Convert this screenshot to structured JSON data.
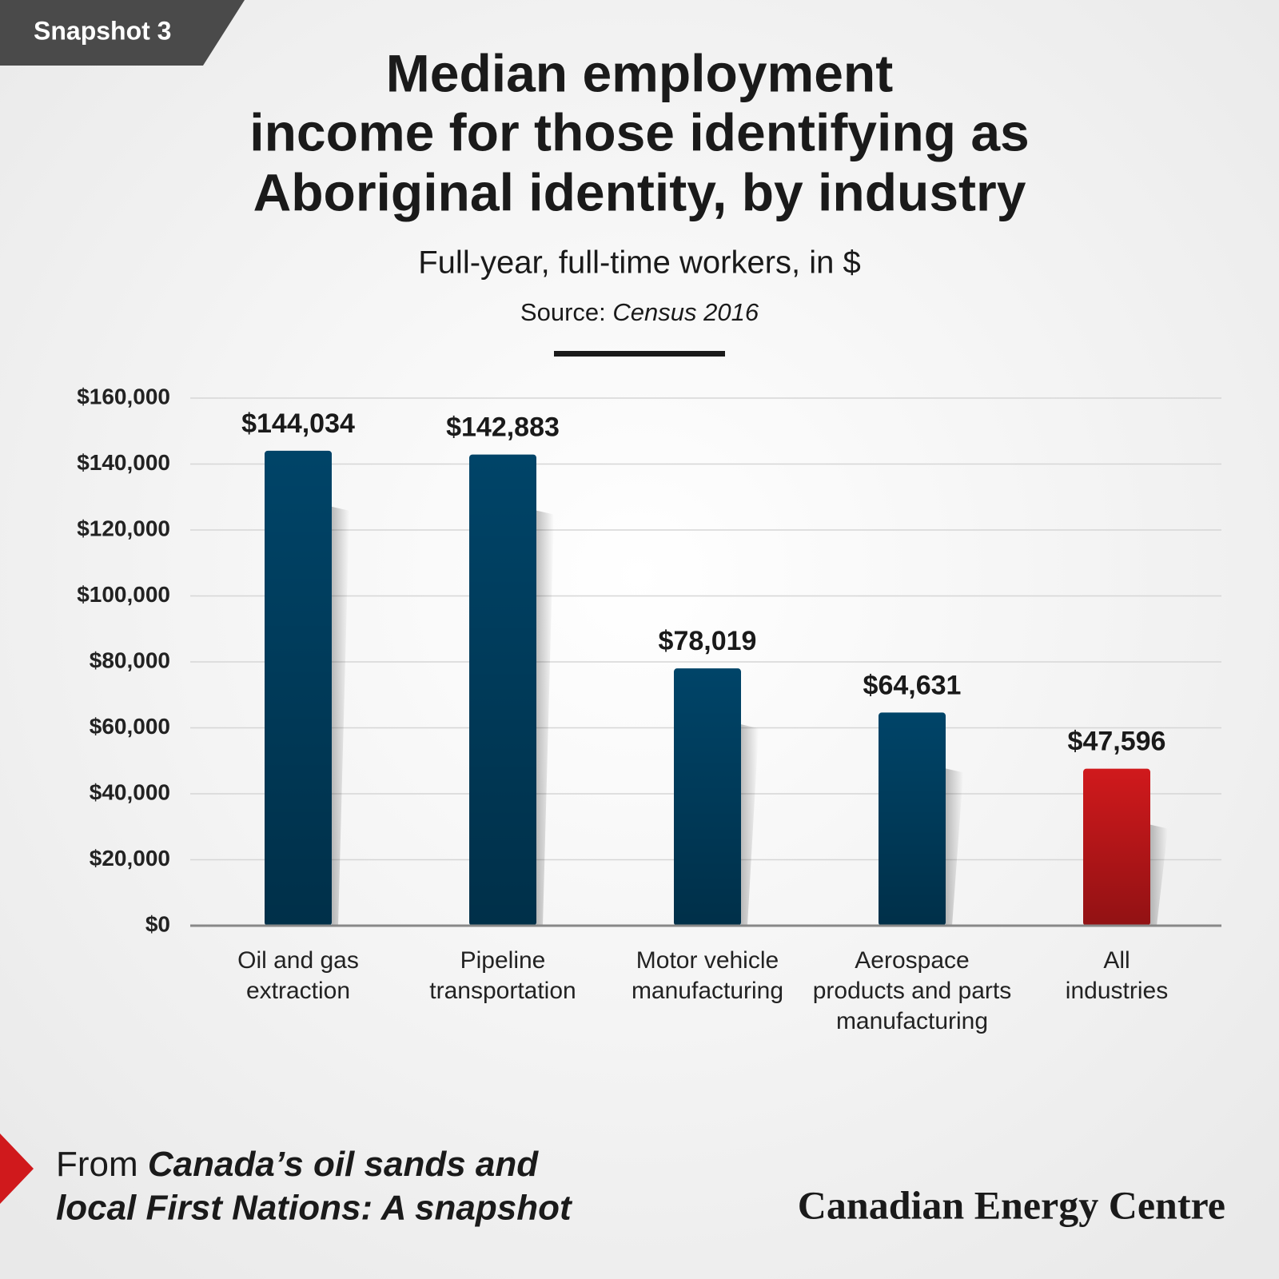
{
  "badge": "Snapshot 3",
  "chart_data": {
    "type": "bar",
    "title": [
      "Median employment",
      "income for those identifying as",
      "Aboriginal identity, by industry"
    ],
    "subtitle": "Full-year, full-time workers, in $",
    "source_label": "Source:",
    "source": "Census 2016",
    "categories": [
      [
        "Oil and gas",
        "extraction"
      ],
      [
        "Pipeline",
        "transportation"
      ],
      [
        "Motor vehicle",
        "manufacturing"
      ],
      [
        "Aerospace",
        "products and parts",
        "manufacturing"
      ],
      [
        "All",
        "industries"
      ]
    ],
    "values": [
      144034,
      142883,
      78019,
      64631,
      47596
    ],
    "value_labels": [
      "$144,034",
      "$142,883",
      "$78,019",
      "$64,631",
      "$47,596"
    ],
    "colors": [
      "#004468",
      "#004468",
      "#004468",
      "#004468",
      "#d0191c"
    ],
    "ylim": [
      0,
      160000
    ],
    "yticks": [
      {
        "value": 0,
        "label": "$0"
      },
      {
        "value": 20000,
        "label": "$20,000"
      },
      {
        "value": 40000,
        "label": "$40,000"
      },
      {
        "value": 60000,
        "label": "$60,000"
      },
      {
        "value": 80000,
        "label": "$80,000"
      },
      {
        "value": 100000,
        "label": "$100,000"
      },
      {
        "value": 120000,
        "label": "$120,000"
      },
      {
        "value": 140000,
        "label": "$140,000"
      },
      {
        "value": 160000,
        "label": "$160,000"
      }
    ],
    "grid": true
  },
  "footer": {
    "prefix": "From",
    "title_lines": [
      "Canada’s oil sands and",
      "local First Nations: A snapshot"
    ]
  },
  "logo": "Canadian Energy Centre"
}
